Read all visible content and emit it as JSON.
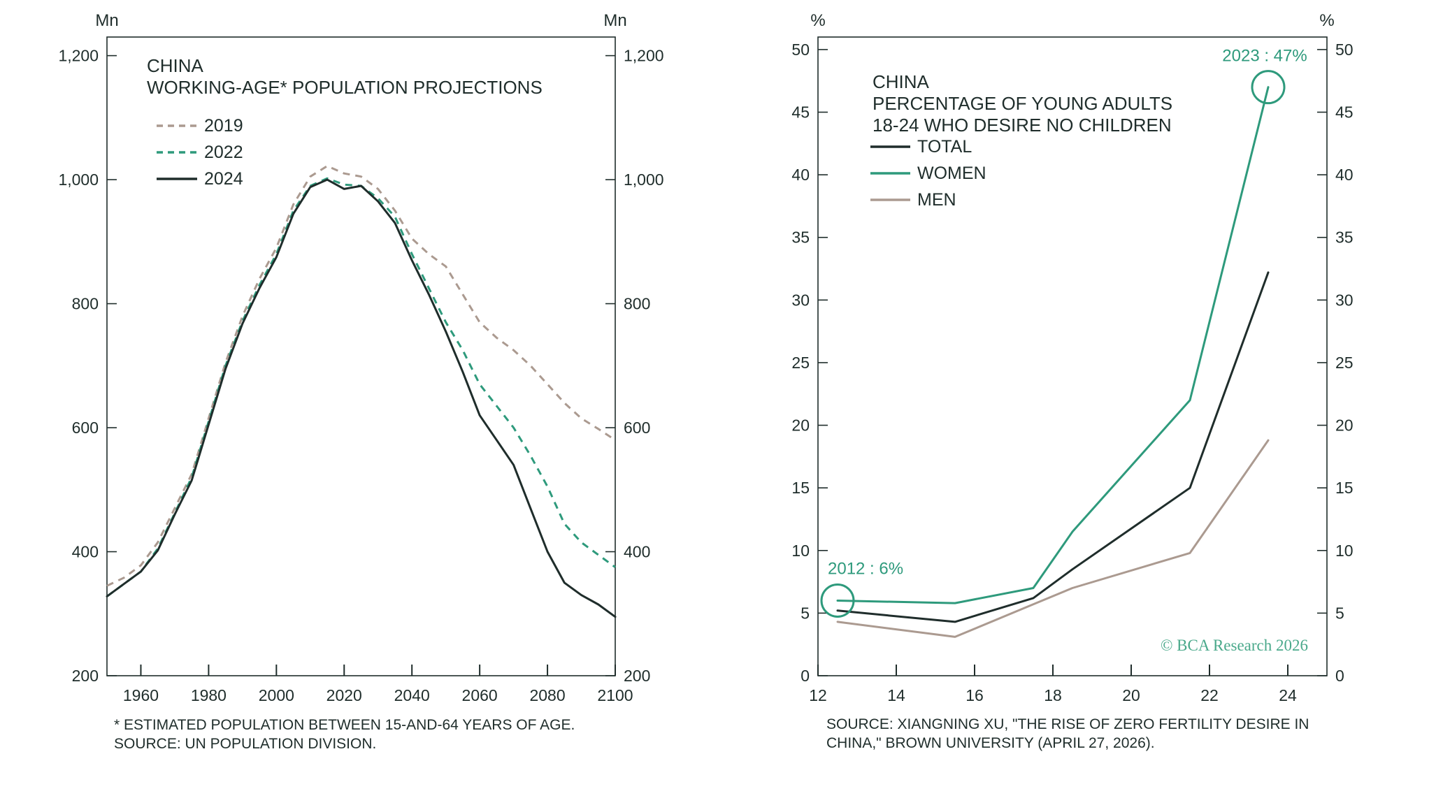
{
  "colors": {
    "ink": "#1f2d2b",
    "teal": "#2e9a7c",
    "taupe": "#ab9a90",
    "credit": "#4aa98b"
  },
  "chart_data": [
    {
      "type": "line",
      "title": [
        "CHINA",
        "WORKING-AGE* POPULATION PROJECTIONS"
      ],
      "unit_left": "Mn",
      "unit_right": "Mn",
      "xlim": [
        1950,
        2100
      ],
      "ylim": [
        200,
        1230
      ],
      "x_ticks": [
        1960,
        1980,
        2000,
        2020,
        2040,
        2060,
        2080,
        2100
      ],
      "x_tick_labels": [
        "1960",
        "1980",
        "2000",
        "2020",
        "2040",
        "2060",
        "2080",
        "2100"
      ],
      "y_ticks": [
        200,
        400,
        600,
        800,
        1000,
        1200
      ],
      "y_tick_labels": [
        "200",
        "400",
        "600",
        "800",
        "1,000",
        "1,200"
      ],
      "legend_position": "top-left",
      "series": [
        {
          "name": "2019",
          "color": "#ab9a90",
          "style": "dashed",
          "x": [
            1950,
            1955,
            1960,
            1965,
            1970,
            1975,
            1980,
            1985,
            1990,
            1995,
            2000,
            2005,
            2010,
            2015,
            2020,
            2025,
            2030,
            2035,
            2040,
            2045,
            2050,
            2055,
            2060,
            2065,
            2070,
            2075,
            2080,
            2085,
            2090,
            2095,
            2100
          ],
          "y": [
            345,
            358,
            378,
            415,
            470,
            525,
            615,
            705,
            780,
            840,
            890,
            960,
            1005,
            1022,
            1010,
            1005,
            985,
            950,
            905,
            880,
            860,
            815,
            770,
            745,
            725,
            700,
            670,
            640,
            615,
            598,
            580
          ]
        },
        {
          "name": "2022",
          "color": "#2e9a7c",
          "style": "dashed",
          "x": [
            1950,
            1955,
            1960,
            1965,
            1970,
            1975,
            1980,
            1985,
            1990,
            1995,
            2000,
            2005,
            2010,
            2015,
            2020,
            2025,
            2030,
            2035,
            2040,
            2045,
            2050,
            2055,
            2060,
            2065,
            2070,
            2075,
            2080,
            2085,
            2090,
            2095,
            2100
          ],
          "y": [
            328,
            348,
            368,
            405,
            462,
            520,
            610,
            700,
            772,
            830,
            880,
            950,
            990,
            1002,
            992,
            990,
            970,
            940,
            880,
            825,
            770,
            725,
            670,
            635,
            600,
            555,
            505,
            445,
            415,
            395,
            375
          ]
        },
        {
          "name": "2024",
          "color": "#1f2d2b",
          "style": "solid",
          "x": [
            1950,
            1955,
            1960,
            1965,
            1970,
            1975,
            1980,
            1985,
            1990,
            1995,
            2000,
            2005,
            2010,
            2015,
            2020,
            2025,
            2030,
            2035,
            2040,
            2045,
            2050,
            2055,
            2060,
            2065,
            2070,
            2075,
            2080,
            2085,
            2090,
            2095,
            2100
          ],
          "y": [
            328,
            348,
            368,
            402,
            460,
            515,
            605,
            695,
            768,
            825,
            875,
            945,
            988,
            1000,
            985,
            990,
            965,
            930,
            870,
            815,
            755,
            690,
            620,
            580,
            540,
            470,
            400,
            350,
            330,
            315,
            295
          ]
        }
      ],
      "footnotes": [
        "* ESTIMATED POPULATION BETWEEN 15-AND-64 YEARS OF AGE.",
        "SOURCE: UN POPULATION DIVISION."
      ]
    },
    {
      "type": "line",
      "title": [
        "CHINA",
        "PERCENTAGE OF YOUNG ADULTS",
        "18-24 WHO DESIRE NO CHILDREN"
      ],
      "unit_left": "%",
      "unit_right": "%",
      "xlim": [
        12,
        25
      ],
      "ylim": [
        0,
        51
      ],
      "x_ticks": [
        12,
        14,
        16,
        18,
        20,
        22,
        24
      ],
      "x_tick_labels": [
        "12",
        "14",
        "16",
        "18",
        "20",
        "22",
        "24"
      ],
      "y_ticks": [
        0,
        5,
        10,
        15,
        20,
        25,
        30,
        35,
        40,
        45,
        50
      ],
      "y_tick_labels": [
        "0",
        "5",
        "10",
        "15",
        "20",
        "25",
        "30",
        "35",
        "40",
        "45",
        "50"
      ],
      "legend_position": "top-left",
      "series": [
        {
          "name": "TOTAL",
          "color": "#1f2d2b",
          "x": [
            12.5,
            15.5,
            17.5,
            18.5,
            21.5,
            23.5
          ],
          "y": [
            5.2,
            4.3,
            6.2,
            8.5,
            15.0,
            32.2
          ]
        },
        {
          "name": "WOMEN",
          "color": "#2e9a7c",
          "x": [
            12.5,
            15.5,
            17.5,
            18.5,
            21.5,
            23.5
          ],
          "y": [
            6.0,
            5.8,
            7.0,
            11.5,
            22.0,
            47.0
          ]
        },
        {
          "name": "MEN",
          "color": "#ab9a90",
          "x": [
            12.5,
            15.5,
            17.5,
            18.5,
            21.5,
            23.5
          ],
          "y": [
            4.3,
            3.1,
            5.7,
            7.0,
            9.8,
            18.8
          ]
        }
      ],
      "annotations": [
        {
          "text": "2012 : 6%",
          "x": 12.5,
          "y": 6.0
        },
        {
          "text": "2023 : 47%",
          "x": 23.5,
          "y": 47.0
        }
      ],
      "credit": "© BCA Research 2026",
      "footnotes": [
        "SOURCE: XIANGNING XU, \"THE RISE OF ZERO FERTILITY DESIRE IN",
        "CHINA,\" BROWN UNIVERSITY (APRIL 27, 2026)."
      ]
    }
  ]
}
